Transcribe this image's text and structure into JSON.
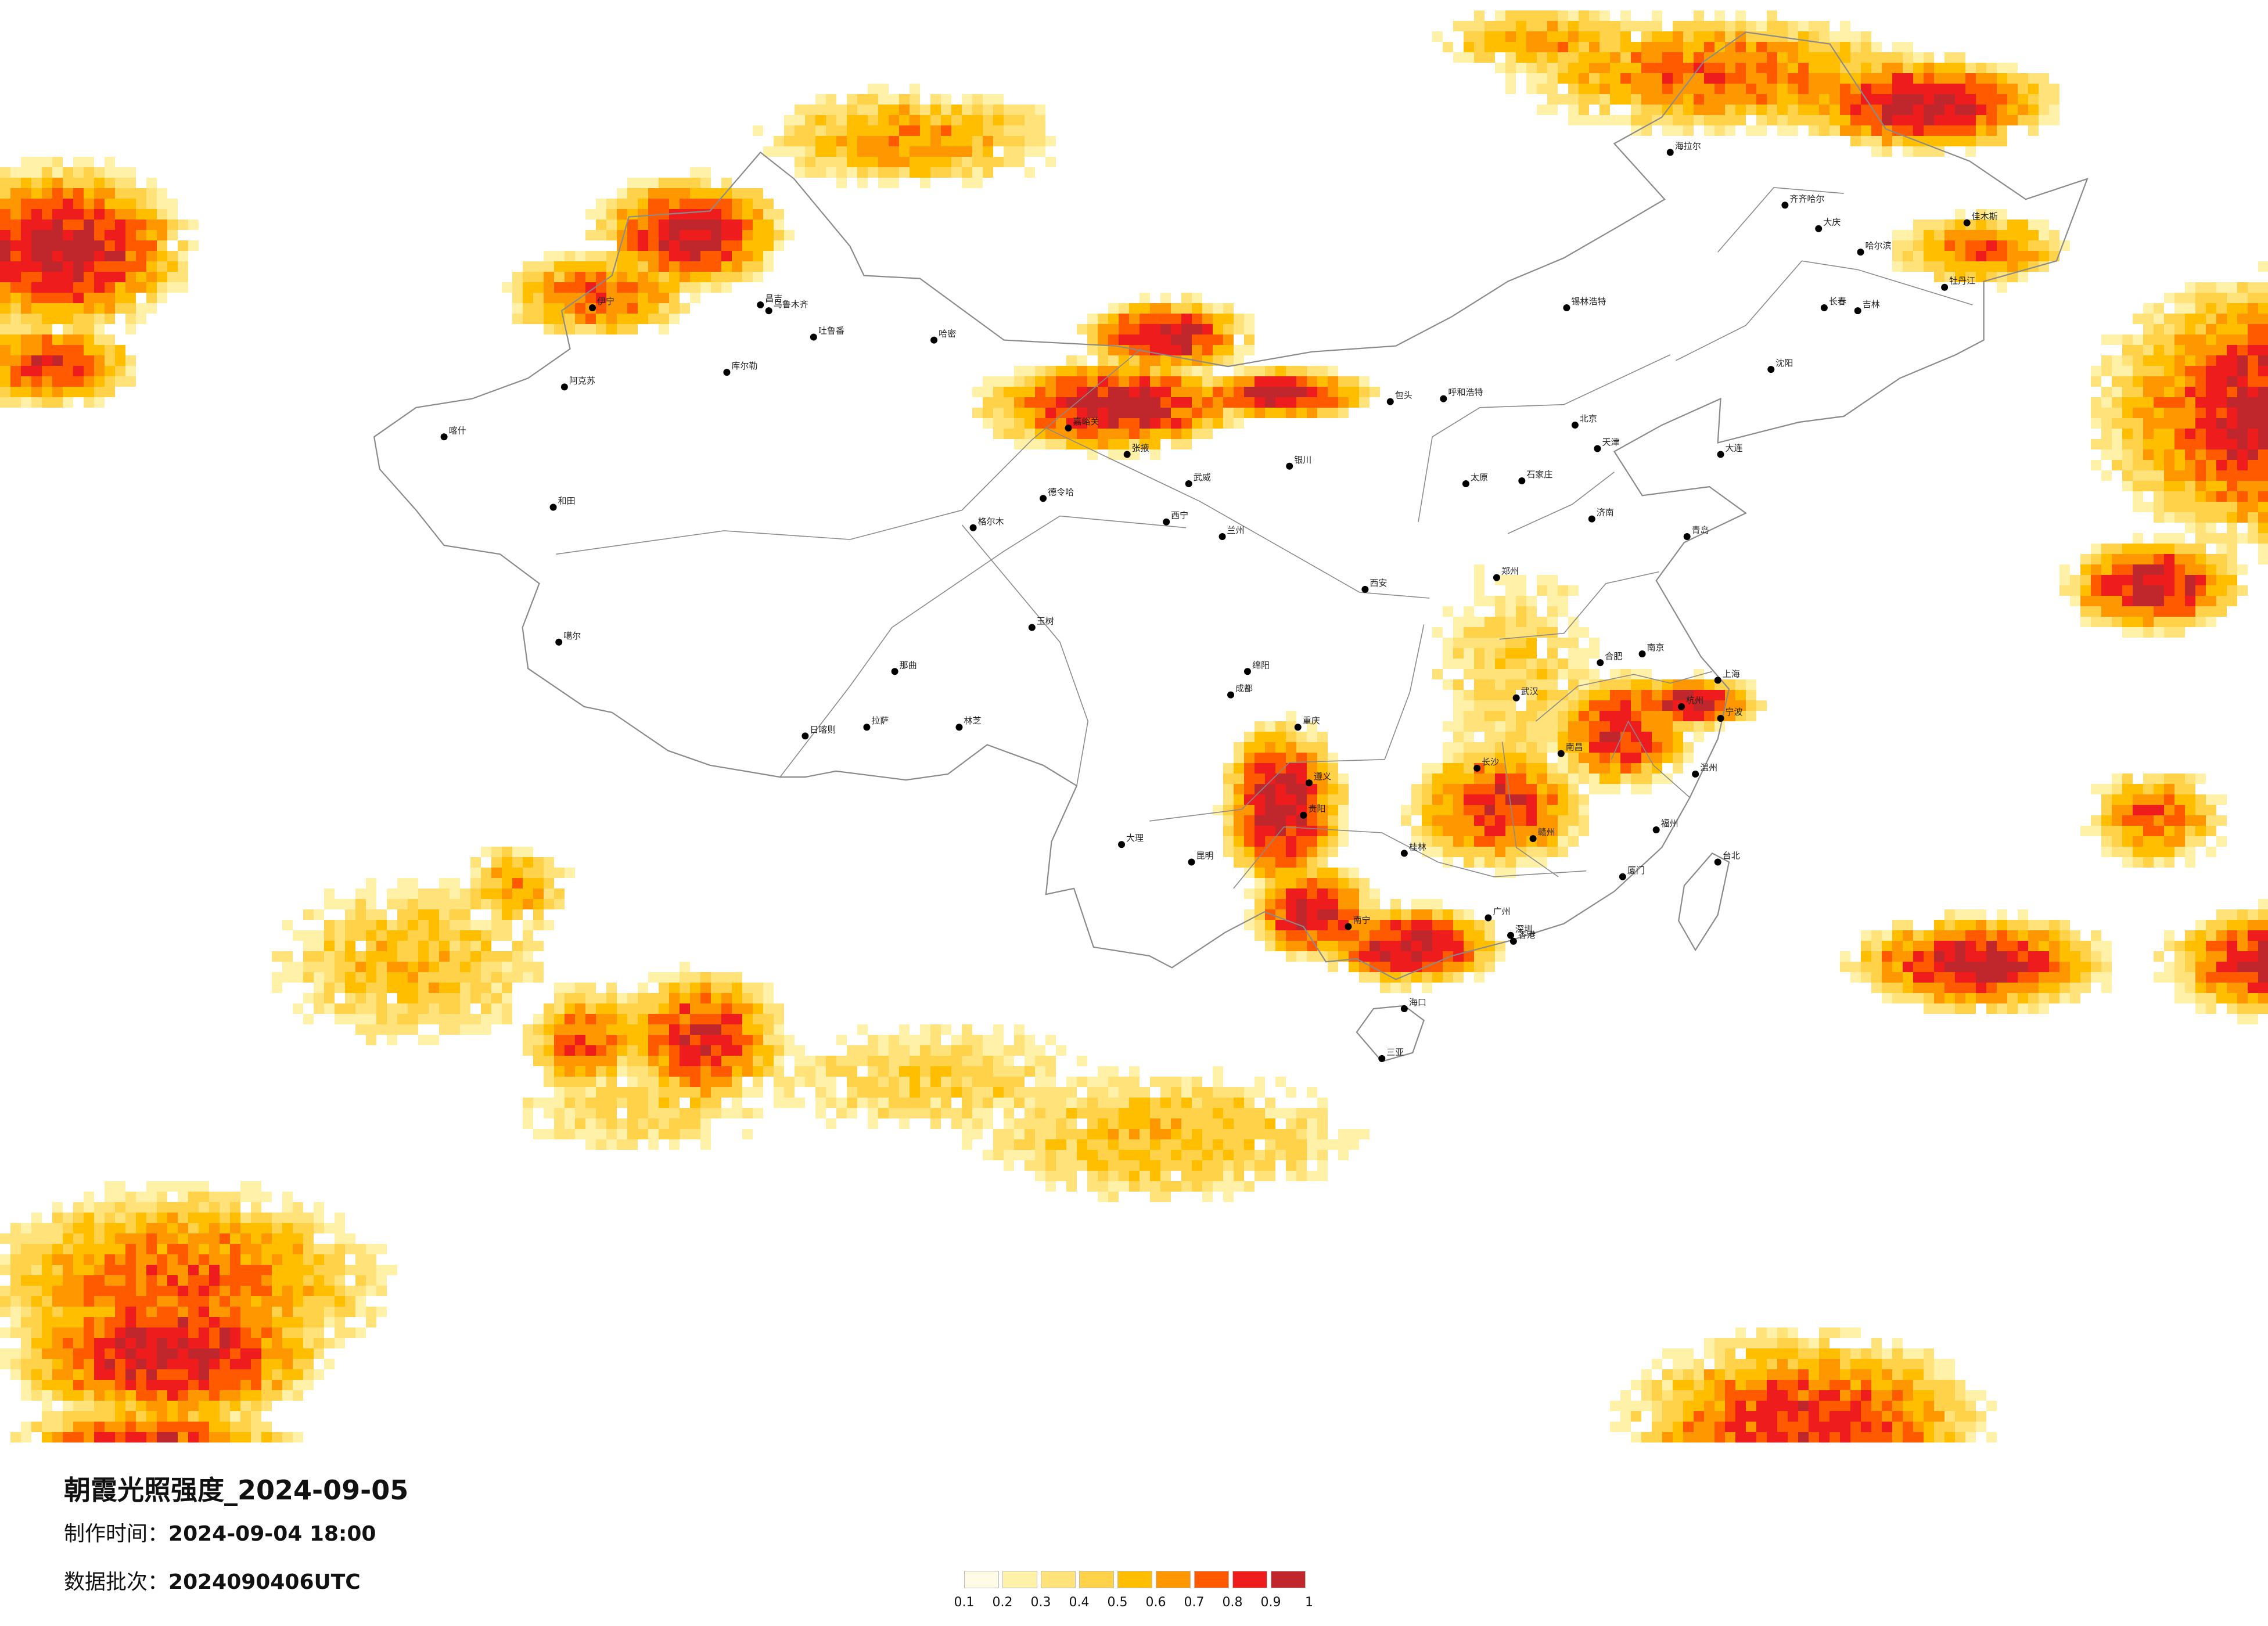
{
  "title": "朝霞光照强度_2024-09-05",
  "made_time": {
    "label": "制作时间：",
    "value": "2024-09-04 18:00"
  },
  "batch": {
    "label": "数据批次：",
    "value": "2024090406UTC"
  },
  "legend": {
    "colors": [
      "#fffbe6",
      "#fff1a8",
      "#ffe27a",
      "#ffd24a",
      "#ffbf00",
      "#ff9800",
      "#ff5a00",
      "#ee1c1c",
      "#c0272d"
    ],
    "ticks": [
      "0.1",
      "0.2",
      "0.3",
      "0.4",
      "0.5",
      "0.6",
      "0.7",
      "0.8",
      "0.9",
      "1"
    ]
  },
  "cities": [
    {
      "name": "伊宁",
      "lon": 81.3,
      "lat": 43.9
    },
    {
      "name": "乌鲁木齐",
      "lon": 87.6,
      "lat": 43.8
    },
    {
      "name": "昌吉",
      "lon": 87.3,
      "lat": 44.0
    },
    {
      "name": "吐鲁番",
      "lon": 89.2,
      "lat": 42.9
    },
    {
      "name": "哈密",
      "lon": 93.5,
      "lat": 42.8
    },
    {
      "name": "库尔勒",
      "lon": 86.1,
      "lat": 41.7
    },
    {
      "name": "阿克苏",
      "lon": 80.3,
      "lat": 41.2
    },
    {
      "name": "喀什",
      "lon": 76.0,
      "lat": 39.5
    },
    {
      "name": "和田",
      "lon": 79.9,
      "lat": 37.1
    },
    {
      "name": "噶尔",
      "lon": 80.1,
      "lat": 32.5
    },
    {
      "name": "日喀则",
      "lon": 88.9,
      "lat": 29.3
    },
    {
      "name": "拉萨",
      "lon": 91.1,
      "lat": 29.6
    },
    {
      "name": "林芝",
      "lon": 94.4,
      "lat": 29.6
    },
    {
      "name": "那曲",
      "lon": 92.1,
      "lat": 31.5
    },
    {
      "name": "格尔木",
      "lon": 94.9,
      "lat": 36.4
    },
    {
      "name": "德令哈",
      "lon": 97.4,
      "lat": 37.4
    },
    {
      "name": "玉树",
      "lon": 97.0,
      "lat": 33.0
    },
    {
      "name": "西宁",
      "lon": 101.8,
      "lat": 36.6
    },
    {
      "name": "嘉峪关",
      "lon": 98.3,
      "lat": 39.8
    },
    {
      "name": "张掖",
      "lon": 100.4,
      "lat": 38.9
    },
    {
      "name": "武威",
      "lon": 102.6,
      "lat": 37.9
    },
    {
      "name": "兰州",
      "lon": 103.8,
      "lat": 36.1
    },
    {
      "name": "银川",
      "lon": 106.2,
      "lat": 38.5
    },
    {
      "name": "呼和浩特",
      "lon": 111.7,
      "lat": 40.8
    },
    {
      "name": "包头",
      "lon": 109.8,
      "lat": 40.7
    },
    {
      "name": "锡林浩特",
      "lon": 116.1,
      "lat": 43.9
    },
    {
      "name": "海拉尔",
      "lon": 119.8,
      "lat": 49.2
    },
    {
      "name": "齐齐哈尔",
      "lon": 123.9,
      "lat": 47.4
    },
    {
      "name": "大庆",
      "lon": 125.1,
      "lat": 46.6
    },
    {
      "name": "哈尔滨",
      "lon": 126.6,
      "lat": 45.8
    },
    {
      "name": "佳木斯",
      "lon": 130.4,
      "lat": 46.8
    },
    {
      "name": "牡丹江",
      "lon": 129.6,
      "lat": 44.6
    },
    {
      "name": "长春",
      "lon": 125.3,
      "lat": 43.9
    },
    {
      "name": "吉林",
      "lon": 126.5,
      "lat": 43.8
    },
    {
      "name": "沈阳",
      "lon": 123.4,
      "lat": 41.8
    },
    {
      "name": "大连",
      "lon": 121.6,
      "lat": 38.9
    },
    {
      "name": "北京",
      "lon": 116.4,
      "lat": 39.9
    },
    {
      "name": "天津",
      "lon": 117.2,
      "lat": 39.1
    },
    {
      "name": "石家庄",
      "lon": 114.5,
      "lat": 38.0
    },
    {
      "name": "太原",
      "lon": 112.5,
      "lat": 37.9
    },
    {
      "name": "济南",
      "lon": 117.0,
      "lat": 36.7
    },
    {
      "name": "青岛",
      "lon": 120.4,
      "lat": 36.1
    },
    {
      "name": "郑州",
      "lon": 113.6,
      "lat": 34.7
    },
    {
      "name": "西安",
      "lon": 108.9,
      "lat": 34.3
    },
    {
      "name": "合肥",
      "lon": 117.3,
      "lat": 31.8
    },
    {
      "name": "南京",
      "lon": 118.8,
      "lat": 32.1
    },
    {
      "name": "上海",
      "lon": 121.5,
      "lat": 31.2
    },
    {
      "name": "杭州",
      "lon": 120.2,
      "lat": 30.3
    },
    {
      "name": "武汉",
      "lon": 114.3,
      "lat": 30.6
    },
    {
      "name": "长沙",
      "lon": 112.9,
      "lat": 28.2
    },
    {
      "name": "南昌",
      "lon": 115.9,
      "lat": 28.7
    },
    {
      "name": "福州",
      "lon": 119.3,
      "lat": 26.1
    },
    {
      "name": "厦门",
      "lon": 118.1,
      "lat": 24.5
    },
    {
      "name": "广州",
      "lon": 113.3,
      "lat": 23.1
    },
    {
      "name": "深圳",
      "lon": 114.1,
      "lat": 22.5
    },
    {
      "name": "南宁",
      "lon": 108.3,
      "lat": 22.8
    },
    {
      "name": "海口",
      "lon": 110.3,
      "lat": 20.0
    },
    {
      "name": "三亚",
      "lon": 109.5,
      "lat": 18.3
    },
    {
      "name": "贵阳",
      "lon": 106.7,
      "lat": 26.6
    },
    {
      "name": "昆明",
      "lon": 102.7,
      "lat": 25.0
    },
    {
      "name": "大理",
      "lon": 100.2,
      "lat": 25.6
    },
    {
      "name": "成都",
      "lon": 104.1,
      "lat": 30.7
    },
    {
      "name": "重庆",
      "lon": 106.5,
      "lat": 29.6
    },
    {
      "name": "遵义",
      "lon": 106.9,
      "lat": 27.7
    },
    {
      "name": "绵阳",
      "lon": 104.7,
      "lat": 31.5
    },
    {
      "name": "桂林",
      "lon": 110.3,
      "lat": 25.3
    },
    {
      "name": "赣州",
      "lon": 114.9,
      "lat": 25.8
    },
    {
      "name": "温州",
      "lon": 120.7,
      "lat": 28.0
    },
    {
      "name": "宁波",
      "lon": 121.6,
      "lat": 29.9
    },
    {
      "name": "台北",
      "lon": 121.5,
      "lat": 25.0
    },
    {
      "name": "香港",
      "lon": 114.2,
      "lat": 22.3
    }
  ]
}
